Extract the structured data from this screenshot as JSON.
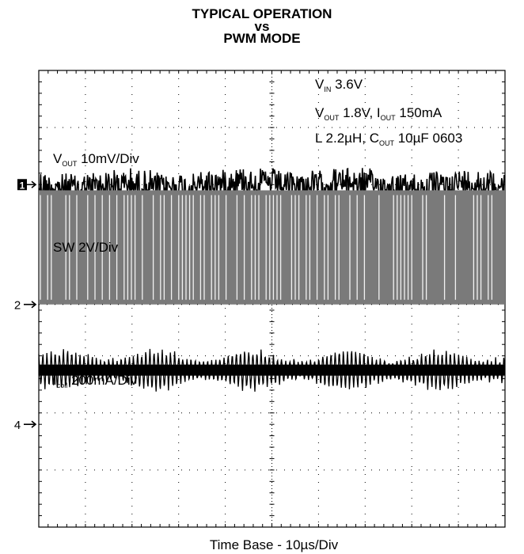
{
  "title_lines": [
    "TYPICAL OPERATION",
    "vs",
    "PWM MODE"
  ],
  "annotations": {
    "vin": {
      "main": "V",
      "sub": "IN",
      "rest": " 3.6V"
    },
    "vout_line": {
      "p1": "V",
      "s1": "OUT",
      "p2": " 1.8V, I",
      "s2": "OUT",
      "p3": " 150mA"
    },
    "l_line": {
      "p1": "L 2.2µH, C",
      "s1": "OUT",
      "p2": " 10µF 0603"
    }
  },
  "chart_data": {
    "type": "line",
    "title": "TYPICAL OPERATION vs PWM MODE",
    "xlabel": "Time Base - 10µs/Div",
    "grid": true,
    "divisions": {
      "x": 10,
      "y": 8
    },
    "series": [
      {
        "name": "V_OUT 10mV/Div",
        "label_main": "V",
        "label_sub": "OUT",
        "label_rest": " 10mV/Div",
        "marker": "1",
        "marker_div": 2.0,
        "center_div": 2.0,
        "amplitude_div": 0.3,
        "color": "#000000"
      },
      {
        "name": "SW 2V/Div",
        "label_main": "SW 2V/Div",
        "label_sub": "",
        "label_rest": "",
        "marker": "2",
        "marker_div": 4.1,
        "low_div": 4.1,
        "high_div": 2.1,
        "color": "#7a7a7a"
      },
      {
        "name": "I_coil 200mA/Div",
        "label_main": "I",
        "label_sub": "coil",
        "label_rest": " 200mA/Div",
        "marker": "4",
        "marker_div": 6.2,
        "center_div": 5.25,
        "amplitude_div": 0.35,
        "color": "#000000"
      }
    ]
  }
}
